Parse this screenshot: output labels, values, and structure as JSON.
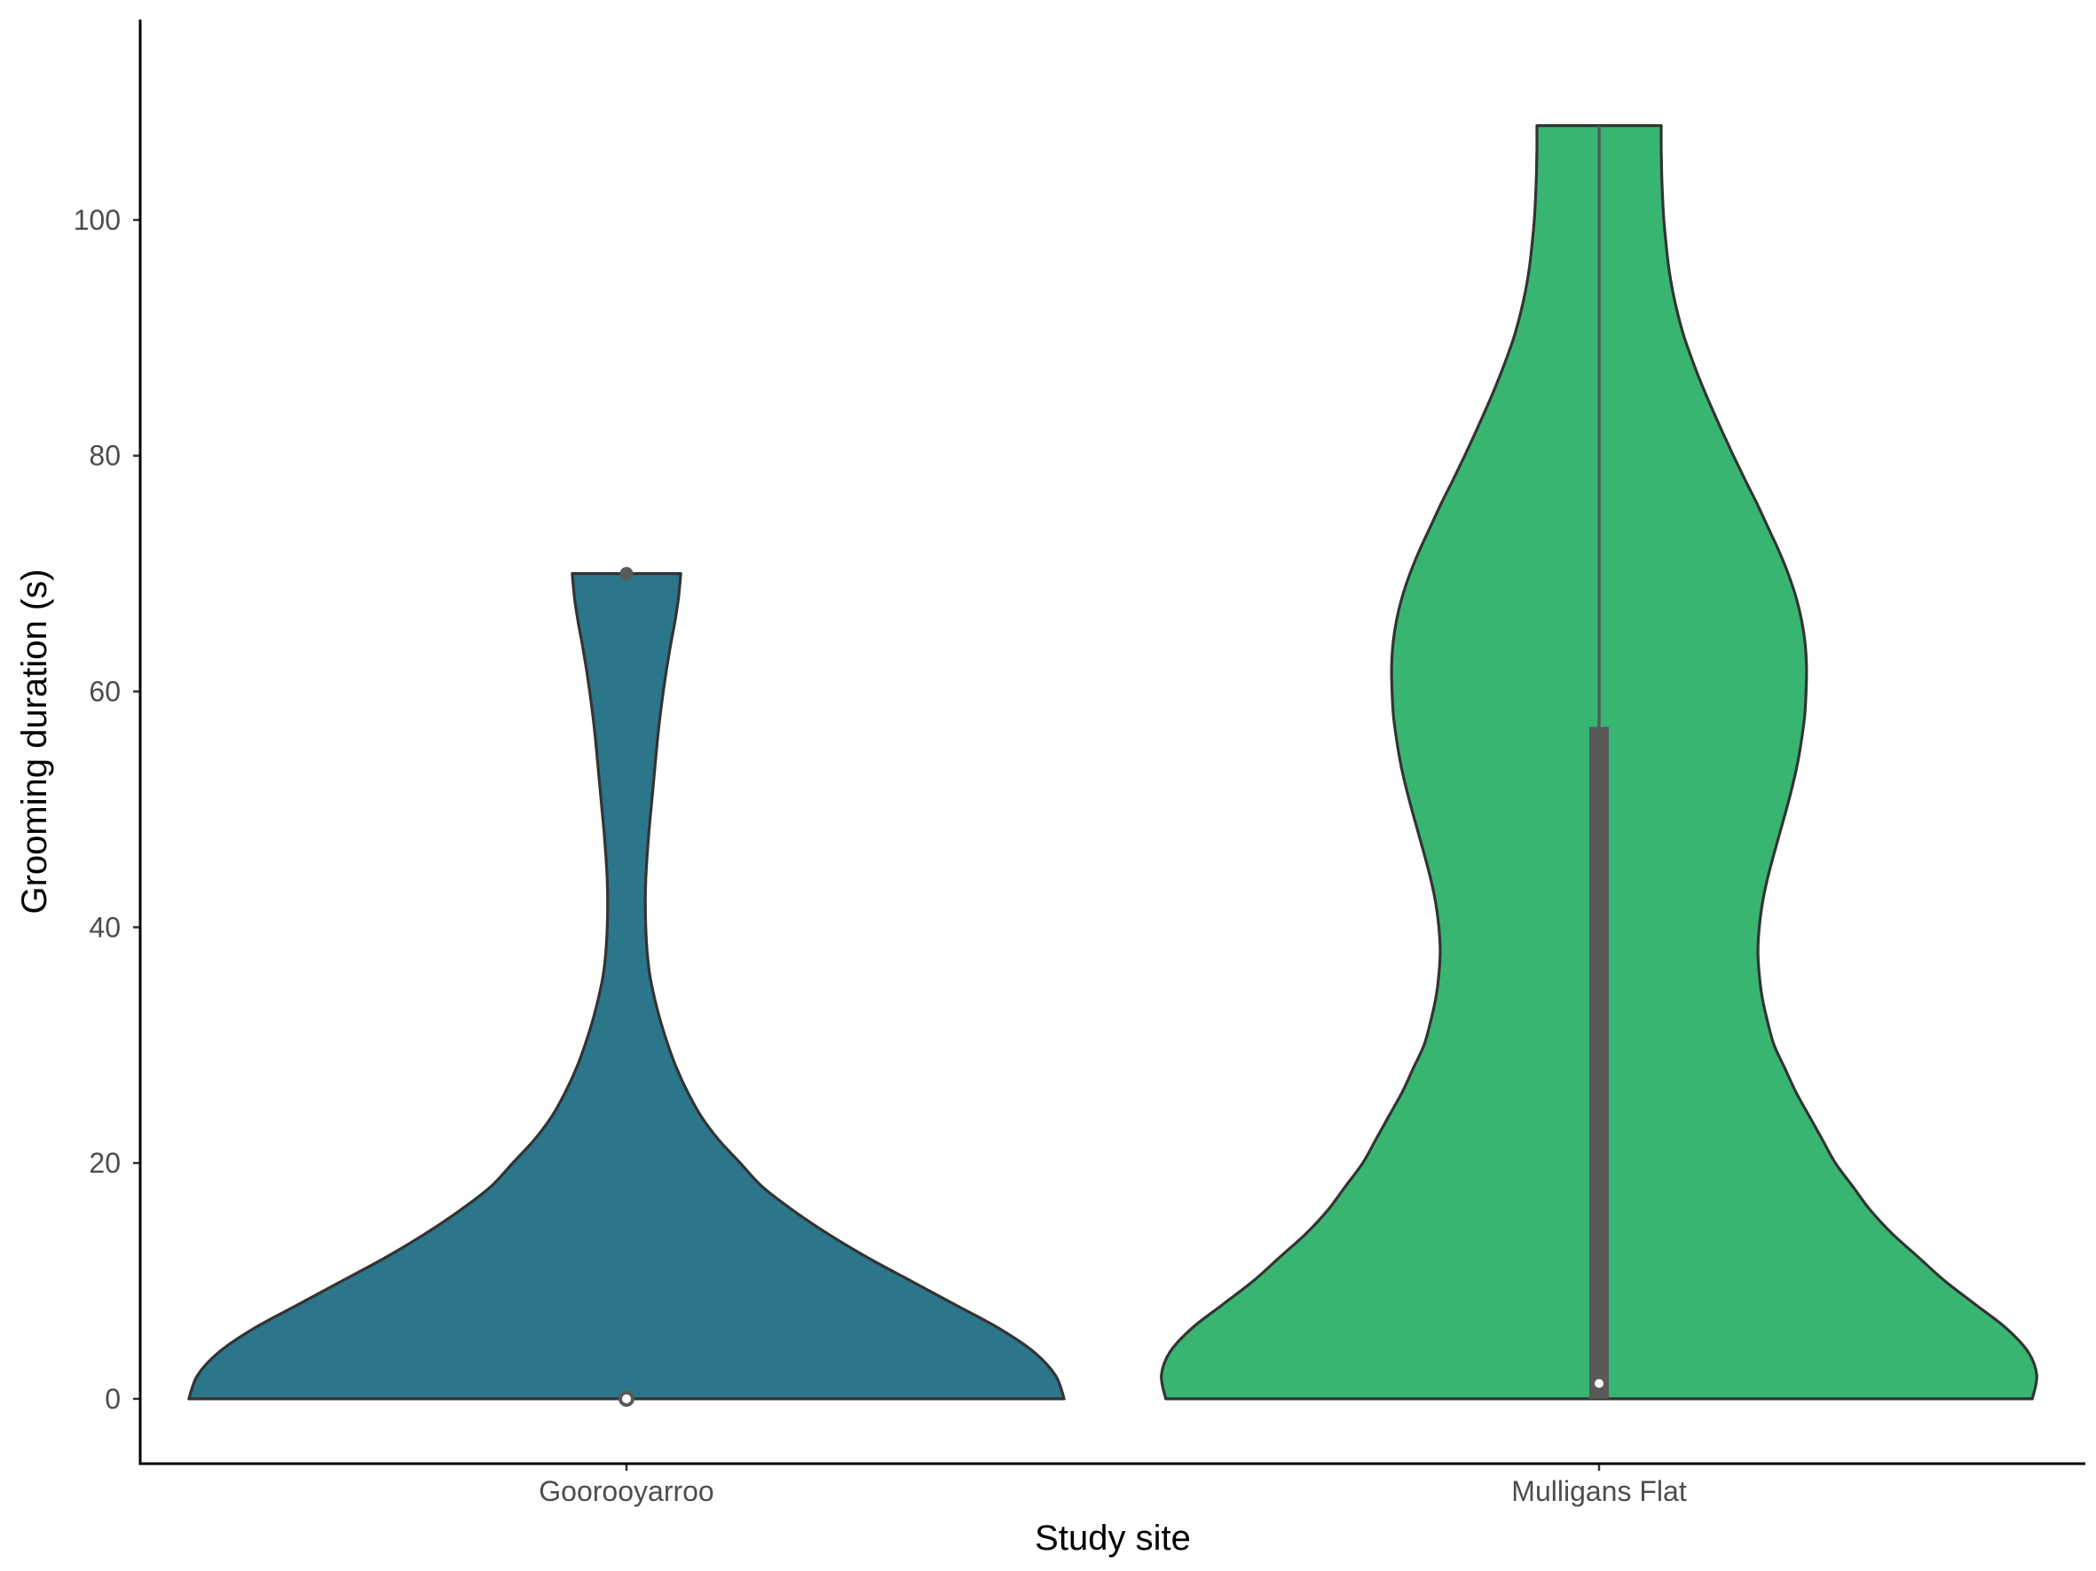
{
  "chart_data": {
    "type": "violin",
    "title": "",
    "xlabel": "Study site",
    "ylabel": "Grooming duration (s)",
    "ylim": [
      -5.5,
      117
    ],
    "yticks": [
      0,
      20,
      40,
      60,
      80,
      100
    ],
    "categories": [
      "Goorooyarroo",
      "Mulligans Flat"
    ],
    "grid": false,
    "legend": "none",
    "groups": [
      {
        "name": "Goorooyarroo",
        "color": "#2c768b",
        "y_range": [
          0,
          70
        ],
        "box": {
          "q1": 0,
          "median": 0,
          "q3": 0,
          "whisker_low": 0,
          "whisker_high": 0,
          "outliers": [
            70
          ]
        },
        "density": [
          [
            0,
            1.0
          ],
          [
            2,
            0.98
          ],
          [
            4,
            0.93
          ],
          [
            6,
            0.85
          ],
          [
            8,
            0.75
          ],
          [
            10,
            0.65
          ],
          [
            12,
            0.55
          ],
          [
            14,
            0.46
          ],
          [
            16,
            0.38
          ],
          [
            18,
            0.31
          ],
          [
            20,
            0.26
          ],
          [
            22,
            0.21
          ],
          [
            24,
            0.17
          ],
          [
            26,
            0.14
          ],
          [
            28,
            0.115
          ],
          [
            30,
            0.095
          ],
          [
            32,
            0.078
          ],
          [
            34,
            0.064
          ],
          [
            36,
            0.053
          ],
          [
            38,
            0.047
          ],
          [
            40,
            0.044
          ],
          [
            42,
            0.043
          ],
          [
            44,
            0.044
          ],
          [
            46,
            0.047
          ],
          [
            48,
            0.051
          ],
          [
            50,
            0.056
          ],
          [
            52,
            0.061
          ],
          [
            54,
            0.066
          ],
          [
            56,
            0.071
          ],
          [
            58,
            0.077
          ],
          [
            60,
            0.084
          ],
          [
            62,
            0.092
          ],
          [
            64,
            0.101
          ],
          [
            66,
            0.111
          ],
          [
            68,
            0.119
          ],
          [
            70,
            0.124
          ]
        ]
      },
      {
        "name": "Mulligans Flat",
        "color": "#38b671",
        "y_range": [
          0,
          108
        ],
        "box": {
          "q1": 0,
          "median": 1.3,
          "q3": 57,
          "whisker_low": 0,
          "whisker_high": 108,
          "outliers": []
        },
        "density": [
          [
            0,
            0.99
          ],
          [
            2,
            1.0
          ],
          [
            4,
            0.98
          ],
          [
            6,
            0.93
          ],
          [
            8,
            0.86
          ],
          [
            10,
            0.79
          ],
          [
            12,
            0.73
          ],
          [
            14,
            0.67
          ],
          [
            16,
            0.62
          ],
          [
            18,
            0.58
          ],
          [
            20,
            0.54
          ],
          [
            22,
            0.51
          ],
          [
            24,
            0.48
          ],
          [
            26,
            0.45
          ],
          [
            28,
            0.425
          ],
          [
            30,
            0.4
          ],
          [
            32,
            0.385
          ],
          [
            34,
            0.373
          ],
          [
            36,
            0.366
          ],
          [
            38,
            0.363
          ],
          [
            40,
            0.366
          ],
          [
            42,
            0.373
          ],
          [
            44,
            0.384
          ],
          [
            46,
            0.398
          ],
          [
            48,
            0.413
          ],
          [
            50,
            0.428
          ],
          [
            52,
            0.442
          ],
          [
            54,
            0.454
          ],
          [
            56,
            0.463
          ],
          [
            58,
            0.47
          ],
          [
            60,
            0.473
          ],
          [
            62,
            0.474
          ],
          [
            64,
            0.471
          ],
          [
            66,
            0.463
          ],
          [
            68,
            0.45
          ],
          [
            70,
            0.432
          ],
          [
            72,
            0.41
          ],
          [
            74,
            0.385
          ],
          [
            76,
            0.36
          ],
          [
            78,
            0.333
          ],
          [
            80,
            0.307
          ],
          [
            82,
            0.282
          ],
          [
            84,
            0.258
          ],
          [
            86,
            0.235
          ],
          [
            88,
            0.214
          ],
          [
            90,
            0.195
          ],
          [
            92,
            0.18
          ],
          [
            94,
            0.168
          ],
          [
            96,
            0.159
          ],
          [
            98,
            0.153
          ],
          [
            100,
            0.148
          ],
          [
            102,
            0.145
          ],
          [
            104,
            0.143
          ],
          [
            106,
            0.142
          ],
          [
            108,
            0.142
          ]
        ]
      }
    ]
  }
}
